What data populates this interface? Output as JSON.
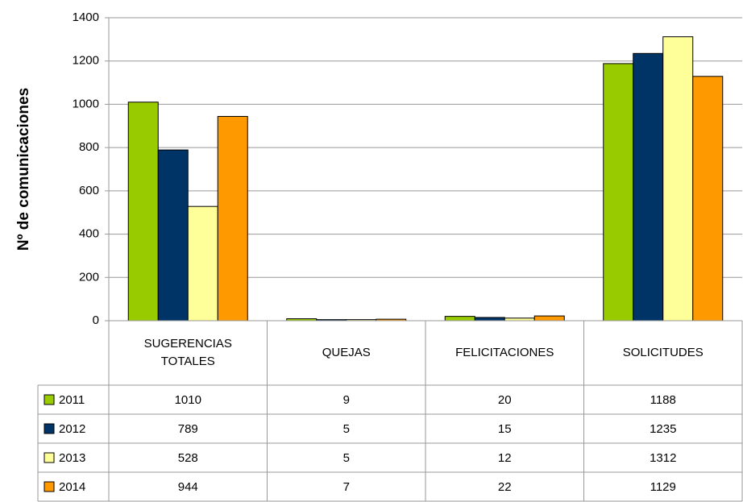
{
  "chart_data": {
    "type": "bar",
    "y_label": "Nº de comunicaciones",
    "categories": [
      "SUGERENCIAS TOTALES",
      "QUEJAS",
      "FELICITACIONES",
      "SOLICITUDES"
    ],
    "series": [
      {
        "name": "2011",
        "color": "#99cc00",
        "values": [
          1010,
          9,
          20,
          1188
        ]
      },
      {
        "name": "2012",
        "color": "#003366",
        "values": [
          789,
          5,
          15,
          1235
        ]
      },
      {
        "name": "2013",
        "color": "#ffff99",
        "values": [
          528,
          5,
          12,
          1312
        ]
      },
      {
        "name": "2014",
        "color": "#ff9900",
        "values": [
          944,
          7,
          22,
          1129
        ]
      }
    ],
    "ylim": [
      0,
      1400
    ],
    "yticks": [
      0,
      200,
      400,
      600,
      800,
      1000,
      1200,
      1400
    ],
    "grid": true
  }
}
